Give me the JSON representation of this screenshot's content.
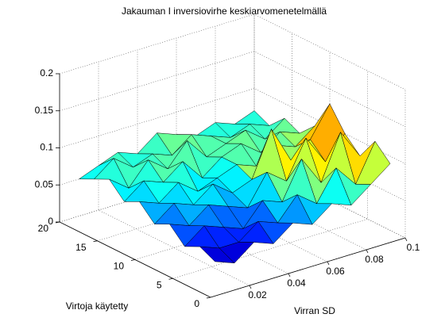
{
  "chart_data": {
    "type": "surface",
    "title": "Jakauman I inversiovirhe keskiarvomenetelmällä",
    "x_label": "Virran SD",
    "y_label": "Virtoja käytetty",
    "x": [
      0.01,
      0.02,
      0.03,
      0.04,
      0.05,
      0.06,
      0.07,
      0.08,
      0.09,
      0.1
    ],
    "y": [
      2,
      4,
      6,
      8,
      10,
      12,
      14,
      16,
      18,
      20
    ],
    "z": [
      [
        0.03,
        0.02,
        0.04,
        0.03,
        0.05,
        0.04,
        0.06,
        0.05,
        0.07,
        0.09
      ],
      [
        0.04,
        0.03,
        0.03,
        0.05,
        0.04,
        0.07,
        0.05,
        0.09,
        0.06,
        0.11
      ],
      [
        0.03,
        0.05,
        0.04,
        0.03,
        0.06,
        0.05,
        0.1,
        0.06,
        0.12,
        0.08
      ],
      [
        0.05,
        0.04,
        0.06,
        0.05,
        0.04,
        0.08,
        0.06,
        0.11,
        0.07,
        0.1
      ],
      [
        0.04,
        0.06,
        0.05,
        0.07,
        0.05,
        0.06,
        0.12,
        0.07,
        0.09,
        0.13
      ],
      [
        0.06,
        0.05,
        0.07,
        0.05,
        0.06,
        0.07,
        0.06,
        0.08,
        0.07,
        0.09
      ],
      [
        0.05,
        0.07,
        0.06,
        0.08,
        0.05,
        0.07,
        0.08,
        0.06,
        0.08,
        0.07
      ],
      [
        0.07,
        0.05,
        0.08,
        0.06,
        0.09,
        0.06,
        0.07,
        0.08,
        0.06,
        0.08
      ],
      [
        0.06,
        0.08,
        0.06,
        0.07,
        0.06,
        0.08,
        0.07,
        0.06,
        0.07,
        0.06
      ],
      [
        0.05,
        0.06,
        0.07,
        0.06,
        0.08,
        0.07,
        0.06,
        0.07,
        0.06,
        0.07
      ]
    ],
    "xlim": [
      0,
      0.1
    ],
    "xticks": [
      0.02,
      0.04,
      0.06,
      0.08,
      0.1
    ],
    "ylim": [
      0,
      20
    ],
    "yticks": [
      0,
      5,
      10,
      15,
      20
    ],
    "zlim": [
      0,
      0.2
    ],
    "zticks": [
      0,
      0.05,
      0.1,
      0.15,
      0.2
    ],
    "colormap": "jet",
    "grid": true
  }
}
